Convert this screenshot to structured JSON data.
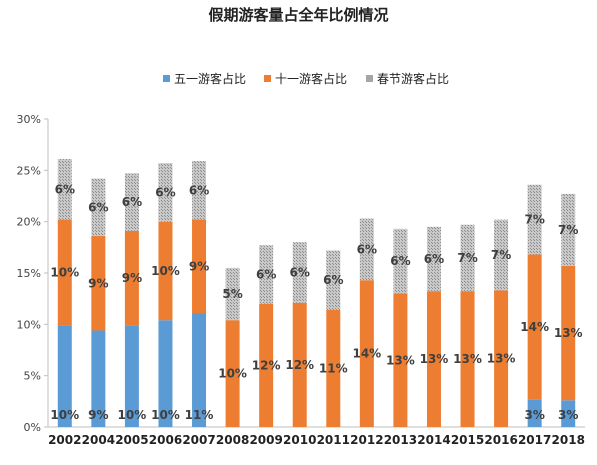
{
  "chart_data": {
    "type": "bar",
    "stacked": true,
    "title": "假期游客量占全年比例情况",
    "categories": [
      "2002",
      "2004",
      "2005",
      "2006",
      "2007",
      "2008",
      "2009",
      "2010",
      "2011",
      "2012",
      "2013",
      "2014",
      "2015",
      "2016",
      "2017",
      "2018"
    ],
    "series": [
      {
        "name": "五一游客占比",
        "color": "#5b9bd5",
        "values": [
          9.9,
          9.4,
          9.9,
          10.4,
          11.1,
          0,
          0,
          0,
          0,
          0,
          0,
          0,
          0,
          0,
          2.7,
          2.6
        ],
        "labels": [
          "10%",
          "9%",
          "10%",
          "10%",
          "11%",
          "",
          "",
          "",
          "",
          "",
          "",
          "",
          "",
          "",
          "3%",
          "3%"
        ]
      },
      {
        "name": "十一游客占比",
        "color": "#ed7d31",
        "values": [
          10.3,
          9.2,
          9.2,
          9.6,
          9.1,
          10.4,
          12.0,
          12.1,
          11.4,
          14.3,
          13.0,
          13.2,
          13.2,
          13.3,
          14.1,
          13.1
        ],
        "labels": [
          "10%",
          "9%",
          "9%",
          "10%",
          "9%",
          "10%",
          "12%",
          "12%",
          "11%",
          "14%",
          "13%",
          "13%",
          "13%",
          "13%",
          "14%",
          "13%"
        ]
      },
      {
        "name": "春节游客占比",
        "color": "#a5a5a5",
        "values": [
          5.9,
          5.6,
          5.6,
          5.7,
          5.7,
          5.1,
          5.7,
          5.9,
          5.8,
          6.0,
          6.3,
          6.3,
          6.5,
          6.9,
          6.8,
          7.0
        ],
        "labels": [
          "6%",
          "6%",
          "6%",
          "6%",
          "6%",
          "5%",
          "6%",
          "6%",
          "6%",
          "6%",
          "6%",
          "6%",
          "7%",
          "7%",
          "7%",
          "7%"
        ]
      }
    ],
    "ylim": [
      0,
      30
    ],
    "yticks": [
      "0%",
      "5%",
      "10%",
      "15%",
      "20%",
      "25%",
      "30%"
    ],
    "legend_position": "top-center",
    "grid": false
  }
}
